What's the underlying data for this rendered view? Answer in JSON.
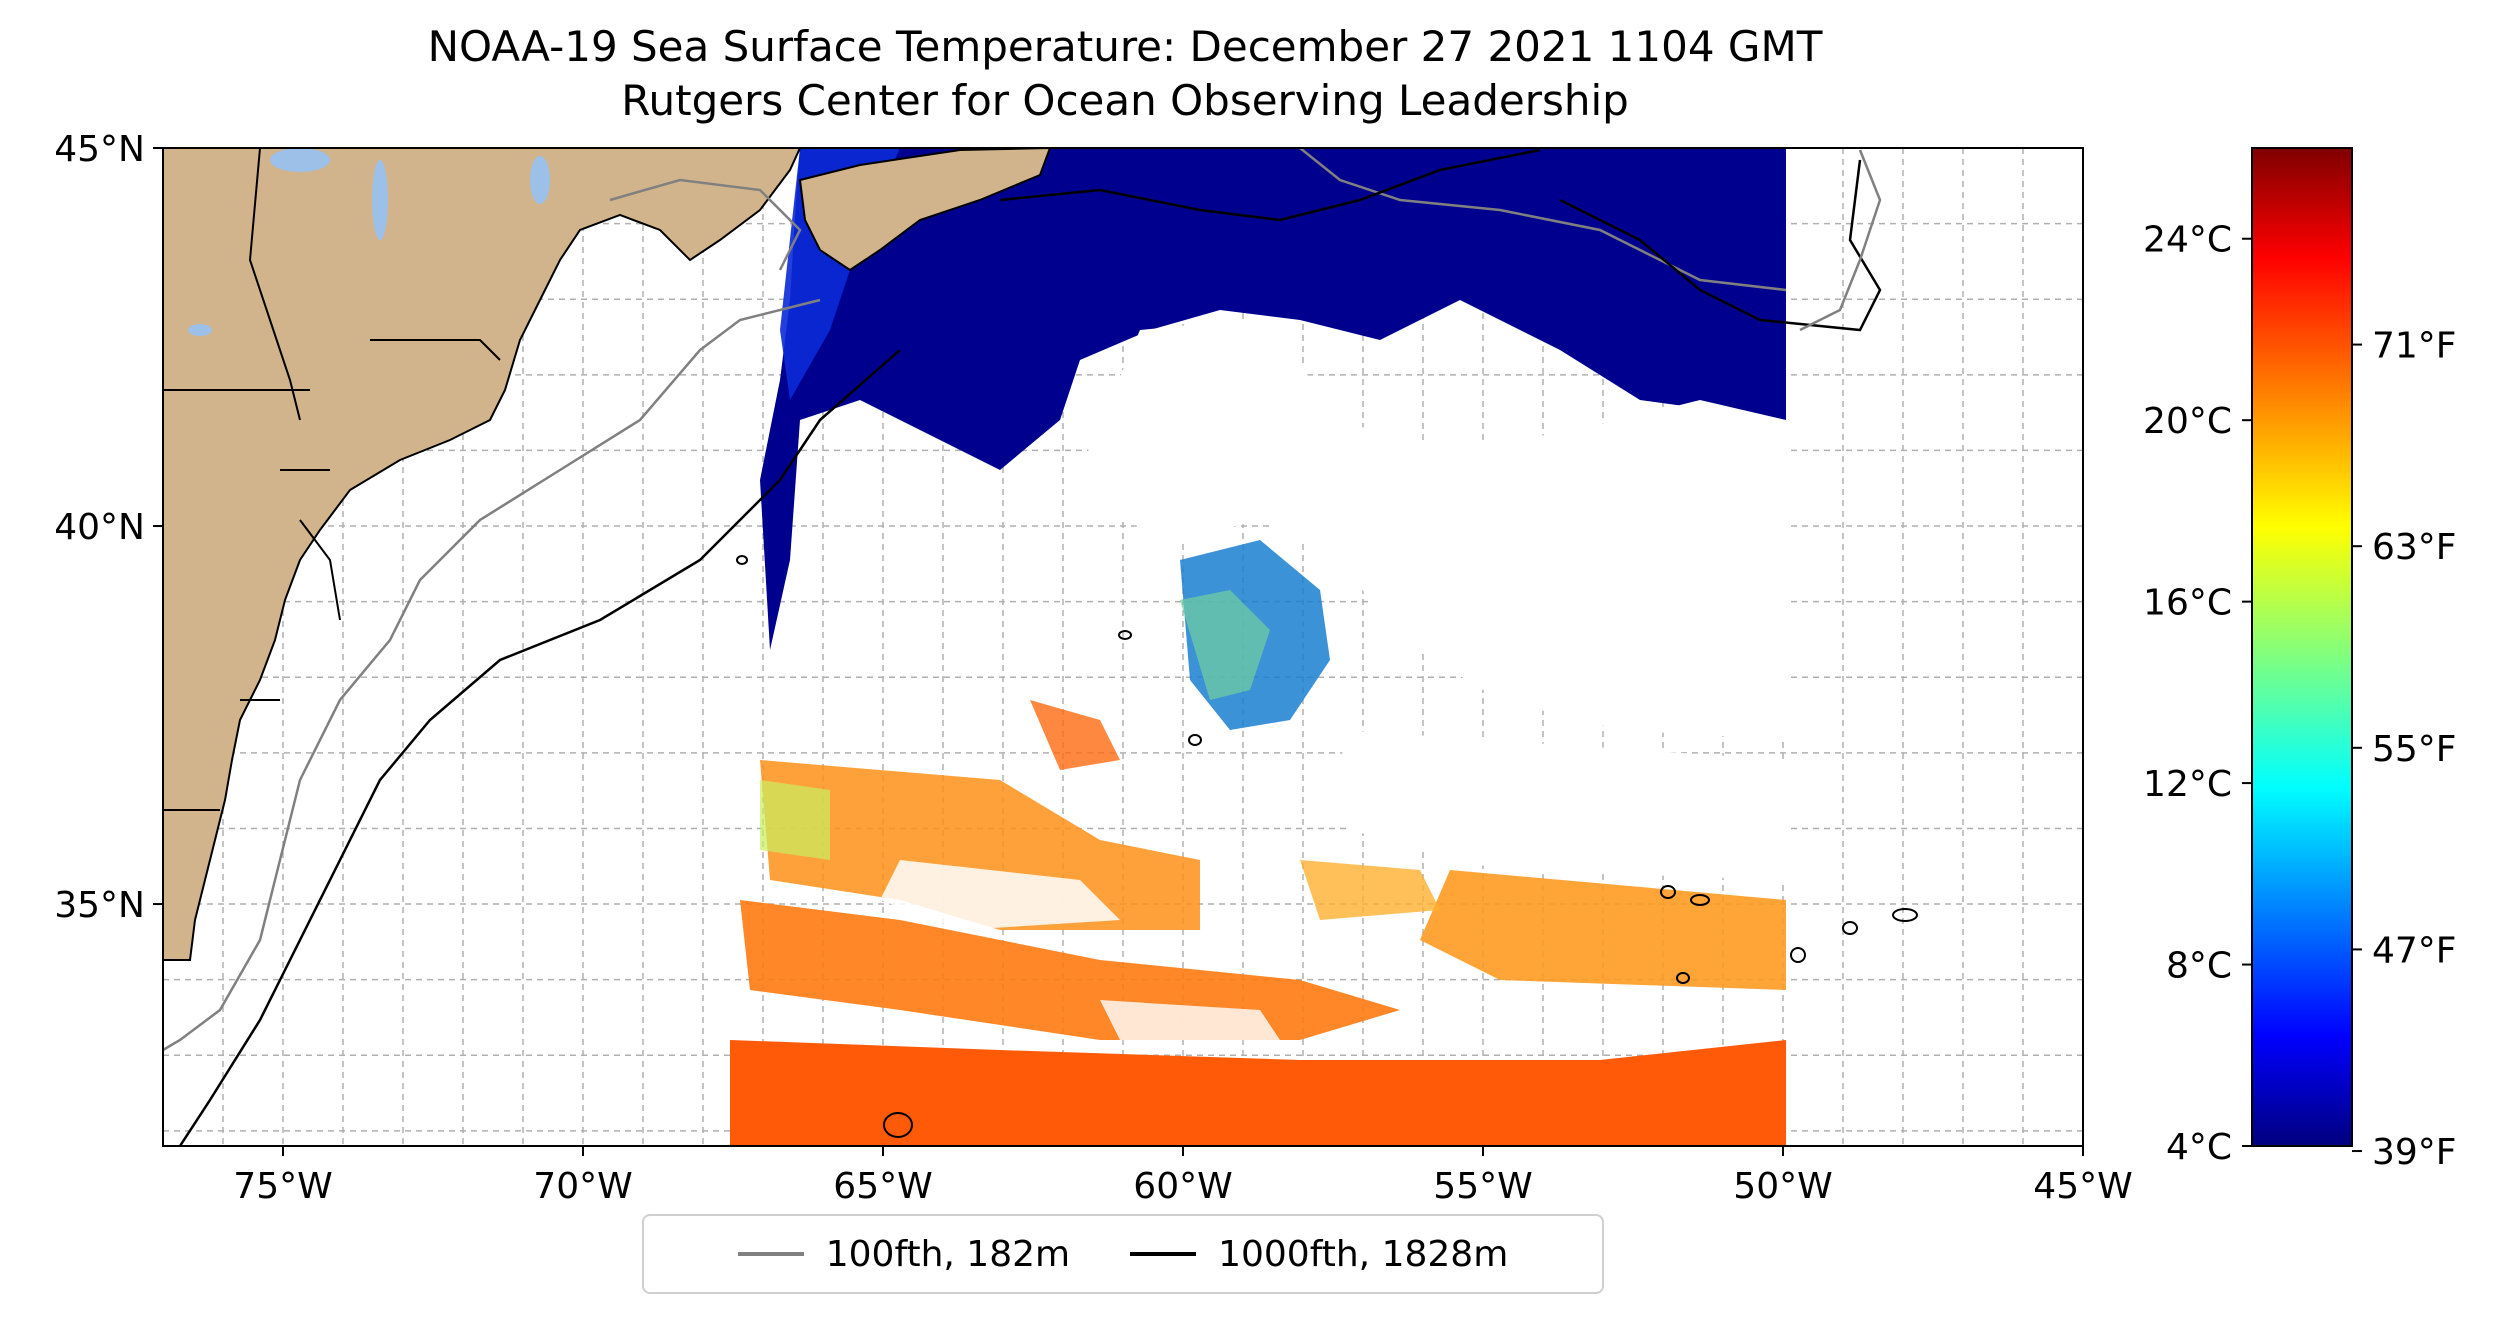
{
  "title": "NOAA-19 Sea Surface Temperature: December 27 2021 1104 GMT",
  "subtitle": "Rutgers Center for Ocean Observing Leadership",
  "map": {
    "lon_ticks": [
      "75°W",
      "70°W",
      "65°W",
      "60°W",
      "55°W",
      "50°W",
      "45°W"
    ],
    "lat_ticks": [
      "45°N",
      "40°N",
      "35°N"
    ],
    "extent": {
      "lon": [
        -77,
        -45
      ],
      "lat": [
        31.8,
        45
      ]
    },
    "land_color": "#d2b48c",
    "lake_color": "#9cc0e8",
    "gridlines": true
  },
  "colorbar": {
    "celsius_ticks": [
      "24°C",
      "20°C",
      "16°C",
      "12°C",
      "8°C",
      "4°C"
    ],
    "fahrenheit_ticks": [
      "71°F",
      "63°F",
      "55°F",
      "47°F",
      "39°F"
    ],
    "colormap": "jet",
    "celsius_range": [
      4,
      26
    ]
  },
  "legend": {
    "items": [
      {
        "label": "100fth, 182m",
        "color": "#808080"
      },
      {
        "label": "1000fth, 1828m",
        "color": "#000000"
      }
    ]
  }
}
